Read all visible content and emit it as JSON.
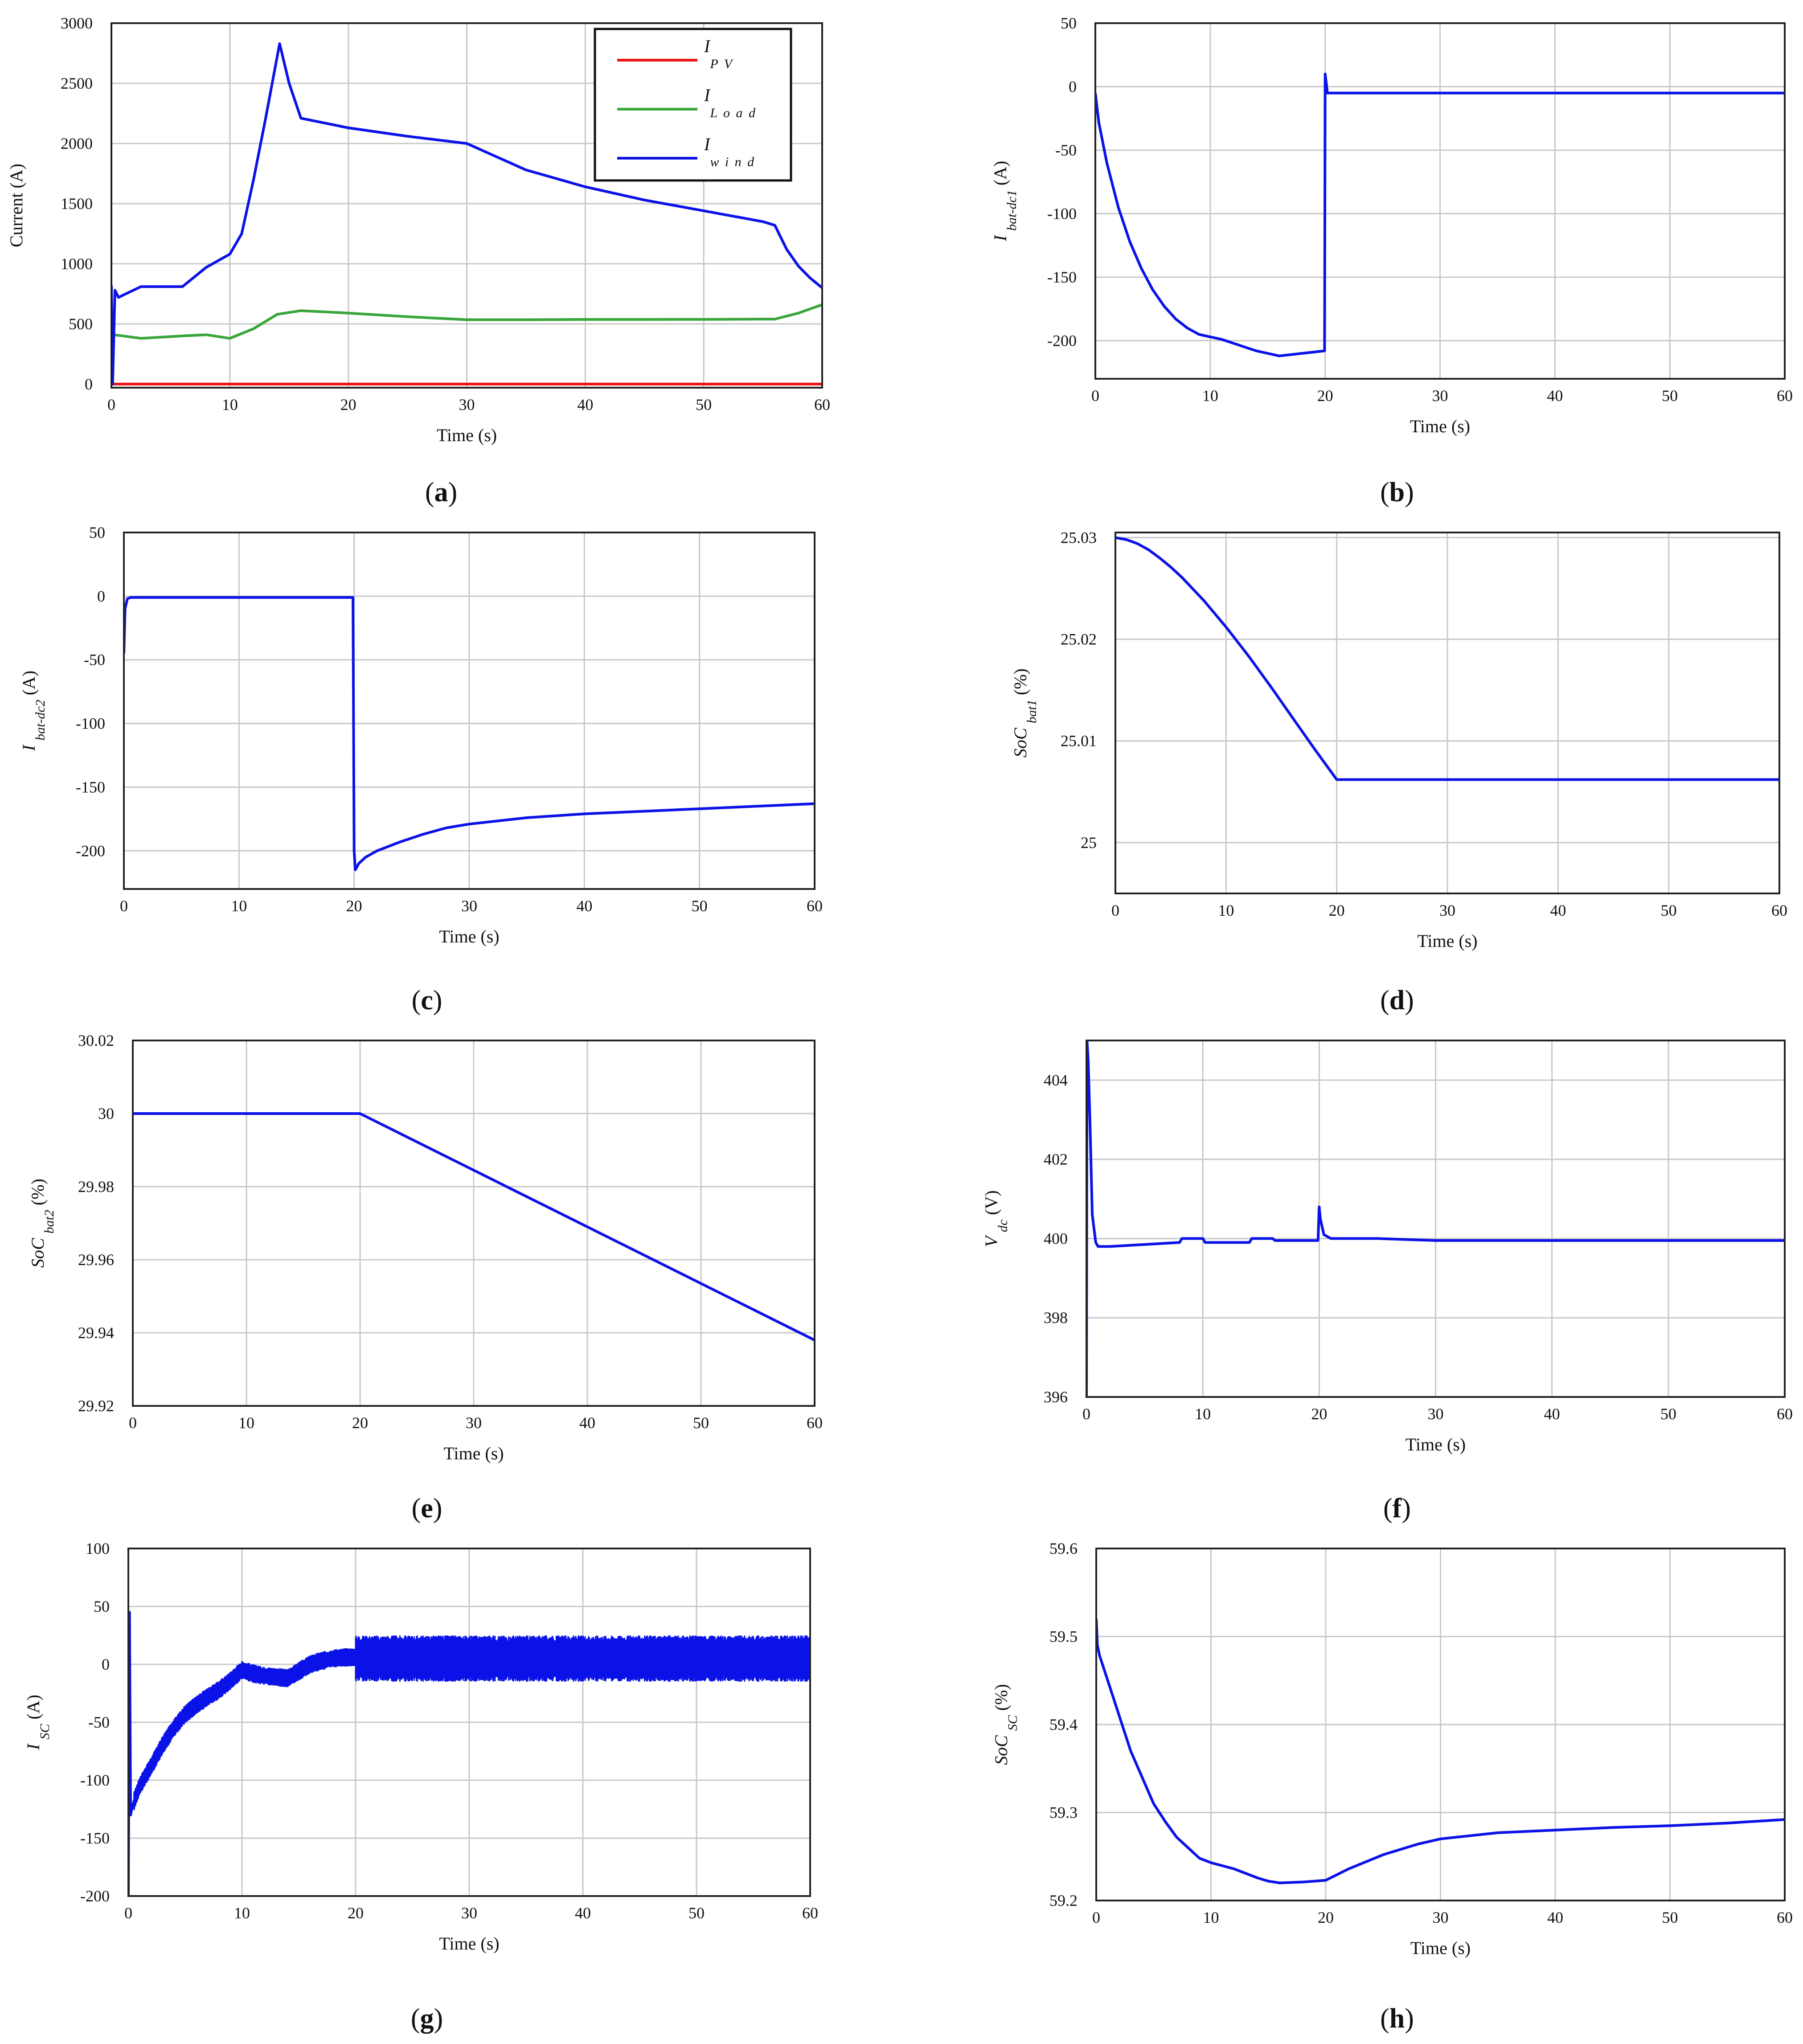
{
  "colors": {
    "grid": "#c8c8c8",
    "frame": "#222222",
    "blue": "#0a12e8",
    "green": "#3aa63a",
    "red": "#ee1111"
  },
  "chart_data": [
    {
      "id": "a",
      "type": "line",
      "panel_label": "a",
      "xlabel": "Time (s)",
      "ylabel_main": "Current (A)",
      "ylabel_sub": "",
      "xlim": [
        0,
        60
      ],
      "ylim": [
        -30,
        3000
      ],
      "xticks": [
        0,
        10,
        20,
        30,
        40,
        50,
        60
      ],
      "yticks": [
        0,
        500,
        1000,
        1500,
        2000,
        2500,
        3000
      ],
      "legend": true,
      "legend_position": "top-right",
      "series": [
        {
          "name": "I",
          "name_sub": "P V",
          "color": "#ee1111",
          "x": [
            0,
            60
          ],
          "y": [
            0,
            0
          ]
        },
        {
          "name": "I",
          "name_sub": "L o a d",
          "color": "#3aa63a",
          "x": [
            0,
            0.2,
            2.5,
            6,
            8,
            10,
            12,
            14,
            16,
            18,
            20,
            25,
            30,
            32,
            35,
            40,
            45,
            50,
            55,
            56,
            58,
            60
          ],
          "y": [
            420,
            410,
            380,
            400,
            410,
            380,
            460,
            580,
            610,
            600,
            590,
            560,
            535,
            535,
            535,
            537,
            537,
            538,
            540,
            540,
            590,
            660
          ]
        },
        {
          "name": "I",
          "name_sub": "w i n d",
          "color": "#0a12e8",
          "x": [
            0,
            0.1,
            0.3,
            0.6,
            1,
            2.5,
            6,
            8,
            10,
            11,
            12,
            13,
            14.2,
            15,
            16,
            20,
            25,
            30,
            35,
            40,
            45,
            50,
            55,
            56,
            57,
            58,
            59,
            60
          ],
          "y": [
            820,
            0,
            780,
            720,
            740,
            810,
            810,
            970,
            1080,
            1250,
            1700,
            2200,
            2830,
            2500,
            2210,
            2130,
            2060,
            2000,
            1780,
            1640,
            1530,
            1440,
            1350,
            1320,
            1120,
            980,
            880,
            800
          ]
        }
      ]
    },
    {
      "id": "b",
      "type": "line",
      "panel_label": "b",
      "xlabel": "Time (s)",
      "ylabel_main": "I",
      "ylabel_sub": "bat-dc1",
      "ylabel_unit": "(A)",
      "xlim": [
        0,
        60
      ],
      "ylim": [
        -230,
        50
      ],
      "xticks": [
        0,
        10,
        20,
        30,
        40,
        50,
        60
      ],
      "yticks": [
        -200,
        -150,
        -100,
        -50,
        0,
        50
      ],
      "legend": false,
      "series": [
        {
          "color": "#0a12e8",
          "x": [
            0,
            0.3,
            1,
            2,
            3,
            4,
            5,
            6,
            7,
            8,
            9,
            10,
            11,
            12,
            13,
            14,
            15,
            16,
            17,
            18,
            19,
            19.95,
            20,
            20.2,
            21,
            25,
            30,
            40,
            50,
            60
          ],
          "y": [
            -5,
            -28,
            -60,
            -95,
            -122,
            -143,
            -160,
            -173,
            -183,
            -190,
            -195,
            -197,
            -199,
            -202,
            -205,
            -208,
            -210,
            -212,
            -211,
            -210,
            -209,
            -208,
            10,
            -5,
            -5,
            -5,
            -5,
            -5,
            -5,
            -5
          ]
        }
      ]
    },
    {
      "id": "c",
      "type": "line",
      "panel_label": "c",
      "xlabel": "Time (s)",
      "ylabel_main": "I",
      "ylabel_sub": "bat-dc2",
      "ylabel_unit": "(A)",
      "xlim": [
        0,
        60
      ],
      "ylim": [
        -230,
        50
      ],
      "xticks": [
        0,
        10,
        20,
        30,
        40,
        50,
        60
      ],
      "yticks": [
        -200,
        -150,
        -100,
        -50,
        0,
        50
      ],
      "legend": false,
      "series": [
        {
          "color": "#0a12e8",
          "x": [
            0,
            0.1,
            0.3,
            0.6,
            5,
            10,
            15,
            19.9,
            20,
            20.1,
            20.4,
            21,
            22,
            24,
            26,
            28,
            30,
            35,
            40,
            45,
            50,
            55,
            60
          ],
          "y": [
            -45,
            -10,
            -2,
            -1,
            -1,
            -1,
            -1,
            -1,
            -200,
            -215,
            -210,
            -205,
            -200,
            -193,
            -187,
            -182,
            -179,
            -174,
            -171,
            -169,
            -167,
            -165,
            -163
          ]
        }
      ]
    },
    {
      "id": "d",
      "type": "line",
      "panel_label": "d",
      "xlabel": "Time (s)",
      "ylabel_main": "SoC",
      "ylabel_sub": "bat1",
      "ylabel_unit": "(%)",
      "xlim": [
        0,
        60
      ],
      "ylim": [
        24.995,
        25.0305
      ],
      "xticks": [
        0,
        10,
        20,
        30,
        40,
        50,
        60
      ],
      "yticks": [
        25,
        25.01,
        25.02,
        25.03
      ],
      "legend": false,
      "series": [
        {
          "color": "#0a12e8",
          "x": [
            0,
            1,
            2,
            3,
            4,
            5,
            6,
            8,
            10,
            12,
            14,
            16,
            18,
            20,
            30,
            40,
            50,
            60
          ],
          "y": [
            25.03,
            25.0298,
            25.0294,
            25.0288,
            25.028,
            25.0271,
            25.0261,
            25.0238,
            25.0212,
            25.0184,
            25.0154,
            25.0123,
            25.0092,
            25.0062,
            25.0062,
            25.0062,
            25.0062,
            25.0062
          ]
        }
      ]
    },
    {
      "id": "e",
      "type": "line",
      "panel_label": "e",
      "xlabel": "Time (s)",
      "ylabel_main": "SoC",
      "ylabel_sub": "bat2",
      "ylabel_unit": "(%)",
      "xlim": [
        0,
        60
      ],
      "ylim": [
        29.92,
        30.02
      ],
      "xticks": [
        0,
        10,
        20,
        30,
        40,
        50,
        60
      ],
      "yticks": [
        29.92,
        29.94,
        29.96,
        29.98,
        30,
        30.02
      ],
      "legend": false,
      "series": [
        {
          "color": "#0a12e8",
          "x": [
            0,
            10,
            20,
            30,
            40,
            50,
            60
          ],
          "y": [
            30,
            30,
            30,
            29.9845,
            29.969,
            29.9535,
            29.938
          ]
        }
      ]
    },
    {
      "id": "f",
      "type": "line",
      "panel_label": "f",
      "xlabel": "Time (s)",
      "ylabel_main": "V",
      "ylabel_sub": "dc",
      "ylabel_unit": "(V)",
      "xlim": [
        0,
        60
      ],
      "ylim": [
        396,
        405
      ],
      "xticks": [
        0,
        10,
        20,
        30,
        40,
        50,
        60
      ],
      "yticks": [
        396,
        398,
        400,
        402,
        404
      ],
      "legend": false,
      "series": [
        {
          "color": "#0a12e8",
          "x": [
            0,
            0.05,
            0.15,
            0.3,
            0.5,
            0.8,
            1,
            2,
            5,
            8,
            8.2,
            10,
            10.2,
            14,
            14.2,
            16,
            16.2,
            19.9,
            20,
            20.1,
            20.4,
            21,
            25,
            30,
            40,
            50,
            60
          ],
          "y": [
            396,
            405,
            404.5,
            403,
            400.6,
            399.9,
            399.8,
            399.8,
            399.85,
            399.9,
            400,
            400,
            399.9,
            399.9,
            400,
            400,
            399.95,
            399.95,
            400.8,
            400.5,
            400.1,
            400,
            400,
            399.95,
            399.95,
            399.95,
            399.95
          ]
        }
      ]
    },
    {
      "id": "g",
      "type": "line",
      "panel_label": "g",
      "xlabel": "Time (s)",
      "ylabel_main": "I",
      "ylabel_sub": "SC",
      "ylabel_unit": "(A)",
      "xlim": [
        0,
        60
      ],
      "ylim": [
        -200,
        100
      ],
      "xticks": [
        0,
        10,
        20,
        30,
        40,
        50,
        60
      ],
      "yticks": [
        -200,
        -150,
        -100,
        -50,
        0,
        50,
        100
      ],
      "legend": false,
      "series": [
        {
          "color": "#0a12e8",
          "x": [
            0,
            0.1,
            0.2,
            0.3,
            0.5,
            1,
            2,
            3,
            4,
            5,
            6,
            7,
            8,
            9,
            10,
            11,
            12,
            13,
            14,
            15,
            16,
            17,
            18,
            19,
            19.9,
            20,
            30,
            40,
            50,
            60
          ],
          "y": [
            -200,
            45,
            -130,
            -125,
            -118,
            -105,
            -88,
            -70,
            -55,
            -43,
            -35,
            -28,
            -22,
            -14,
            -5,
            -8,
            -10,
            -11,
            -12,
            -6,
            0,
            3,
            5,
            6,
            6,
            5,
            5,
            5,
            5,
            5
          ],
          "band": [
            {
              "from": 0.5,
              "to": 20,
              "amp": 8
            },
            {
              "from": 20,
              "to": 60,
              "amp": 20
            }
          ]
        }
      ]
    },
    {
      "id": "h",
      "type": "line",
      "panel_label": "h",
      "xlabel": "Time (s)",
      "ylabel_main": "SoC",
      "ylabel_sub": "SC",
      "ylabel_unit": "(%)",
      "xlim": [
        0,
        60
      ],
      "ylim": [
        59.2,
        59.6
      ],
      "xticks": [
        0,
        10,
        20,
        30,
        40,
        50,
        60
      ],
      "yticks": [
        59.2,
        59.3,
        59.4,
        59.5,
        59.6
      ],
      "legend": false,
      "series": [
        {
          "color": "#0a12e8",
          "x": [
            0,
            0.1,
            0.3,
            1,
            2,
            3,
            4,
            5,
            6,
            7,
            8,
            9,
            10,
            12,
            14,
            15,
            16,
            18,
            20,
            22,
            25,
            28,
            30,
            35,
            40,
            45,
            50,
            55,
            60
          ],
          "y": [
            59.52,
            59.49,
            59.478,
            59.45,
            59.41,
            59.37,
            59.34,
            59.31,
            59.29,
            59.272,
            59.26,
            59.248,
            59.243,
            59.236,
            59.226,
            59.222,
            59.22,
            59.221,
            59.223,
            59.236,
            59.252,
            59.264,
            59.27,
            59.277,
            59.28,
            59.283,
            59.285,
            59.288,
            59.292
          ]
        }
      ]
    }
  ]
}
